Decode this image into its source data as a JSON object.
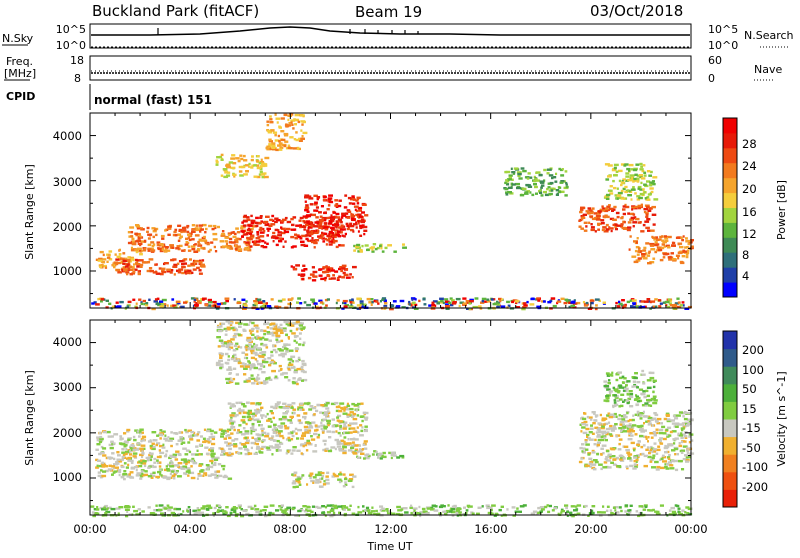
{
  "header": {
    "site": "Buckland Park (fitACF)",
    "beam": "Beam 19",
    "date": "03/Oct/2018"
  },
  "strip_nsky": {
    "label": "N.Sky",
    "left_ticks": [
      "10^5",
      "10^0"
    ],
    "right_ticks": [
      "10^5",
      "10^0"
    ],
    "right_label": "N.Search"
  },
  "strip_freq": {
    "label_top": "Freq.",
    "label_unit": "[MHz]",
    "left_ticks": [
      "18",
      "8"
    ],
    "right_ticks": [
      "60",
      "0"
    ],
    "right_label": "Nave"
  },
  "cpid": {
    "label": "CPID",
    "value": "normal (fast) 151"
  },
  "chart_data": [
    {
      "type": "heatmap",
      "quantity": "Power",
      "ylabel": "Slant Range [km]",
      "yticks": [
        "4000",
        "3000",
        "2000",
        "1000"
      ],
      "ylim": [
        180,
        4500
      ],
      "xlim": [
        0,
        24
      ],
      "xticks": [
        "00:00",
        "04:00",
        "08:00",
        "12:00",
        "16:00",
        "20:00",
        "00:00"
      ],
      "colorbar": {
        "label": "Power [dB]",
        "ticks": [
          "28",
          "24",
          "20",
          "16",
          "12",
          "8",
          "4"
        ],
        "colors": [
          "#0000ff",
          "#1f3fa8",
          "#2e6f7a",
          "#3e8a55",
          "#5cb43c",
          "#a2d43e",
          "#f4cd3c",
          "#f5a42c",
          "#f27a1e",
          "#ee4a12",
          "#e71a08",
          "#f00000"
        ]
      },
      "echo_regions_hours_km": [
        {
          "t": [
            0.0,
            24.0
          ],
          "r": [
            180,
            420
          ],
          "value": "mixed"
        },
        {
          "t": [
            0.2,
            2.0
          ],
          "r": [
            1050,
            1500
          ],
          "value": 20
        },
        {
          "t": [
            1.0,
            4.5
          ],
          "r": [
            950,
            1300
          ],
          "value": 24
        },
        {
          "t": [
            1.5,
            6.5
          ],
          "r": [
            1450,
            2050
          ],
          "value": 22
        },
        {
          "t": [
            6.0,
            10.0
          ],
          "r": [
            1550,
            2250
          ],
          "value": 26
        },
        {
          "t": [
            8.5,
            11.0
          ],
          "r": [
            1750,
            2700
          ],
          "value": 28
        },
        {
          "t": [
            8.0,
            10.5
          ],
          "r": [
            820,
            1150
          ],
          "value": 28
        },
        {
          "t": [
            10.5,
            12.5
          ],
          "r": [
            1450,
            1620
          ],
          "value": 14
        },
        {
          "t": [
            5.0,
            7.0
          ],
          "r": [
            3100,
            3600
          ],
          "value": 16
        },
        {
          "t": [
            7.0,
            8.5
          ],
          "r": [
            3700,
            4500
          ],
          "value": 18
        },
        {
          "t": [
            19.5,
            22.5
          ],
          "r": [
            1900,
            2500
          ],
          "value": 24
        },
        {
          "t": [
            21.5,
            24.0
          ],
          "r": [
            1200,
            1800
          ],
          "value": 22
        },
        {
          "t": [
            20.5,
            22.5
          ],
          "r": [
            2600,
            3400
          ],
          "value": 14
        },
        {
          "t": [
            16.5,
            19.0
          ],
          "r": [
            2700,
            3300
          ],
          "value": 10
        }
      ]
    },
    {
      "type": "heatmap",
      "quantity": "Velocity",
      "ylabel": "Slant Range [km]",
      "yticks": [
        "4000",
        "3000",
        "2000",
        "1000"
      ],
      "ylim": [
        180,
        4500
      ],
      "xlim": [
        0,
        24
      ],
      "xticks": [
        "00:00",
        "04:00",
        "08:00",
        "12:00",
        "16:00",
        "20:00",
        "00:00"
      ],
      "xlabel": "Time UT",
      "colorbar": {
        "label": "Velocity [m s^-1]",
        "ticks": [
          "200",
          "100",
          "50",
          "15",
          "-15",
          "-50",
          "-100",
          "-200"
        ],
        "colors": [
          "#2233aa",
          "#2f5a8a",
          "#3f8a5a",
          "#4cb03a",
          "#80cc40",
          "#c8c8c0",
          "#f0b030",
          "#f08020",
          "#ef5010",
          "#e82008"
        ]
      },
      "echo_regions_hours_km": [
        {
          "t": [
            0.0,
            24.0
          ],
          "r": [
            180,
            420
          ],
          "value": 30
        },
        {
          "t": [
            0.2,
            5.5
          ],
          "r": [
            1000,
            2100
          ],
          "value": 0
        },
        {
          "t": [
            5.5,
            11.0
          ],
          "r": [
            1550,
            2700
          ],
          "value": -40
        },
        {
          "t": [
            8.0,
            10.5
          ],
          "r": [
            820,
            1150
          ],
          "value": 0
        },
        {
          "t": [
            10.5,
            12.5
          ],
          "r": [
            1450,
            1620
          ],
          "value": 40
        },
        {
          "t": [
            5.0,
            8.5
          ],
          "r": [
            3100,
            4500
          ],
          "value": -20
        },
        {
          "t": [
            19.5,
            24.0
          ],
          "r": [
            1200,
            2500
          ],
          "value": 0
        },
        {
          "t": [
            20.5,
            22.5
          ],
          "r": [
            2600,
            3400
          ],
          "value": 10
        }
      ]
    }
  ]
}
